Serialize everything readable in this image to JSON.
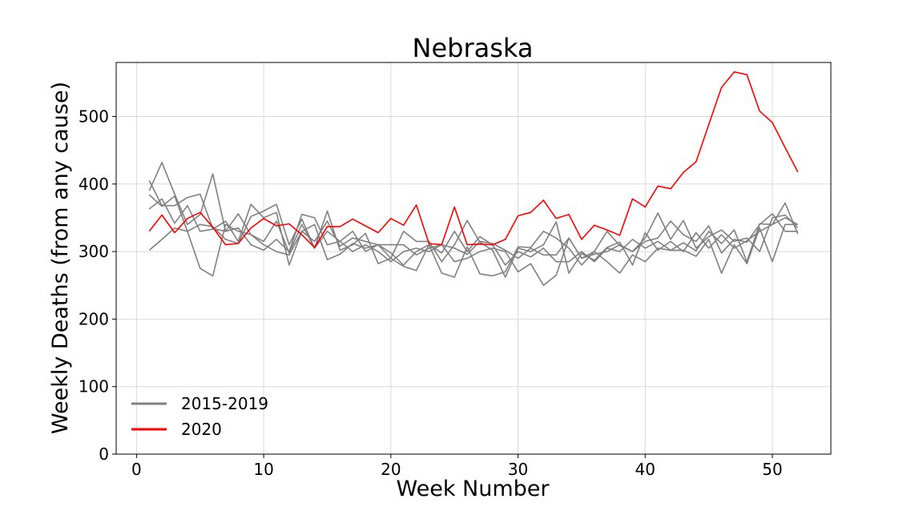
{
  "chart_data": {
    "type": "line",
    "title": "Nebraska",
    "xlabel": "Week Number",
    "ylabel": "Weekly Deaths (from any cause)",
    "xlim": [
      -1.6,
      54.6
    ],
    "ylim": [
      0,
      580
    ],
    "xticks": [
      0,
      10,
      20,
      30,
      40,
      50
    ],
    "yticks": [
      0,
      100,
      200,
      300,
      400,
      500
    ],
    "grid": true,
    "legend_position": "lower-left",
    "legend": [
      {
        "label": "2015-2019",
        "color": "#808080"
      },
      {
        "label": "2020",
        "color": "#ff0000"
      }
    ],
    "x": [
      1,
      2,
      3,
      4,
      5,
      6,
      7,
      8,
      9,
      10,
      11,
      12,
      13,
      14,
      15,
      16,
      17,
      18,
      19,
      20,
      21,
      22,
      23,
      24,
      25,
      26,
      27,
      28,
      29,
      30,
      31,
      32,
      33,
      34,
      35,
      36,
      37,
      38,
      39,
      40,
      41,
      42,
      43,
      44,
      45,
      46,
      47,
      48,
      49,
      50,
      51,
      52
    ],
    "series": [
      {
        "group": "2015-2019",
        "color": "#808080",
        "values": [
          405,
          368,
          368,
          380,
          385,
          334,
          330,
          356,
          325,
          315,
          345,
          298,
          340,
          305,
          330,
          315,
          300,
          310,
          300,
          285,
          300,
          305,
          300,
          310,
          285,
          290,
          300,
          305,
          300,
          270,
          282,
          250,
          265,
          320,
          290,
          300,
          285,
          268,
          295,
          285,
          305,
          302,
          302,
          293,
          318,
          268,
          310,
          282,
          335,
          285,
          340,
          340
        ]
      },
      {
        "group": "2015-2019",
        "color": "#808080",
        "values": [
          390,
          432,
          385,
          340,
          355,
          415,
          330,
          335,
          310,
          302,
          318,
          300,
          355,
          350,
          310,
          315,
          330,
          300,
          310,
          298,
          280,
          300,
          310,
          298,
          330,
          300,
          322,
          310,
          280,
          300,
          292,
          305,
          285,
          285,
          300,
          285,
          305,
          300,
          318,
          305,
          315,
          302,
          313,
          301,
          330,
          312,
          332,
          285,
          341,
          340,
          350,
          340
        ]
      },
      {
        "group": "2015-2019",
        "color": "#808080",
        "values": [
          363,
          378,
          342,
          368,
          330,
          333,
          345,
          315,
          370,
          350,
          358,
          280,
          330,
          315,
          345,
          308,
          320,
          315,
          310,
          310,
          310,
          295,
          305,
          310,
          305,
          296,
          315,
          312,
          302,
          290,
          305,
          295,
          295,
          320,
          290,
          296,
          300,
          310,
          300,
          320,
          357,
          318,
          346,
          305,
          322,
          332,
          315,
          320,
          300,
          350,
          354,
          335
        ]
      },
      {
        "group": "2015-2019",
        "color": "#808080",
        "values": [
          384,
          367,
          382,
          330,
          275,
          264,
          340,
          330,
          325,
          310,
          300,
          295,
          330,
          340,
          288,
          296,
          312,
          305,
          310,
          290,
          278,
          272,
          310,
          268,
          262,
          307,
          267,
          264,
          270,
          307,
          306,
          330,
          320,
          305,
          280,
          300,
          330,
          309,
          300,
          315,
          320,
          345,
          325,
          315,
          338,
          298,
          318,
          314,
          340,
          356,
          330,
          330
        ]
      },
      {
        "group": "2015-2019",
        "color": "#808080",
        "values": [
          302,
          318,
          335,
          330,
          340,
          337,
          318,
          312,
          352,
          360,
          370,
          310,
          348,
          305,
          360,
          302,
          310,
          327,
          282,
          290,
          330,
          315,
          315,
          285,
          310,
          346,
          314,
          302,
          262,
          305,
          300,
          310,
          344,
          268,
          297,
          287,
          306,
          314,
          280,
          328,
          302,
          315,
          300,
          328,
          305,
          325,
          305,
          316,
          330,
          340,
          372,
          326
        ]
      },
      {
        "group": "2020",
        "color": "#ff0000",
        "values": [
          330,
          354,
          328,
          349,
          358,
          336,
          310,
          312,
          335,
          349,
          338,
          341,
          325,
          306,
          337,
          337,
          348,
          338,
          328,
          349,
          339,
          369,
          312,
          310,
          366,
          310,
          311,
          310,
          318,
          353,
          358,
          376,
          349,
          355,
          318,
          339,
          332,
          324,
          378,
          366,
          397,
          393,
          417,
          433,
          488,
          543,
          566,
          562,
          508,
          491,
          454,
          418
        ]
      }
    ]
  }
}
